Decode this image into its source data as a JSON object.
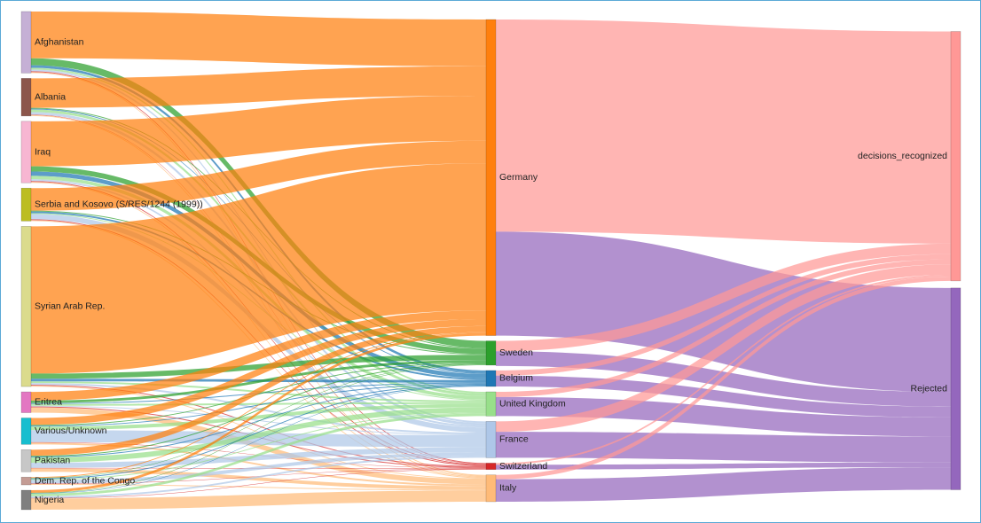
{
  "chart_data": {
    "type": "sankey",
    "title": "",
    "colors": {
      "origin": {
        "Afghanistan": "#c5b0d5",
        "Albania": "#8c564b",
        "Iraq": "#f7b6d2",
        "Serbia and Kosovo (S/RES/1244 (1999))": "#bcbd22",
        "Syrian Arab Rep.": "#dbdb8d",
        "Eritrea": "#e377c2",
        "Various/Unknown": "#17becf",
        "Pakistan": "#c7c7c7",
        "Dem. Rep. of the Congo": "#c49c94",
        "Nigeria": "#7f7f7f"
      },
      "destination": {
        "Germany": "#ff7f0e",
        "Sweden": "#2ca02c",
        "Belgium": "#1f77b4",
        "United Kingdom": "#98df8a",
        "France": "#aec7e8",
        "Switzerland": "#d62728",
        "Italy": "#ffbb78"
      },
      "outcome": {
        "decisions_recognized": "#ff9896",
        "Rejected": "#9467bd"
      }
    },
    "origins": [
      {
        "name": "Afghanistan",
        "flows": {
          "Germany": 54,
          "Sweden": 8,
          "Belgium": 3,
          "United Kingdom": 2,
          "France": 2,
          "Switzerland": 1,
          "Italy": 1
        }
      },
      {
        "name": "Albania",
        "flows": {
          "Germany": 34,
          "Sweden": 1,
          "Belgium": 1,
          "United Kingdom": 3,
          "France": 3,
          "Switzerland": 0.5,
          "Italy": 1
        }
      },
      {
        "name": "Iraq",
        "flows": {
          "Germany": 52,
          "Sweden": 6,
          "Belgium": 5,
          "United Kingdom": 4,
          "France": 2,
          "Switzerland": 1,
          "Italy": 1
        }
      },
      {
        "name": "Serbia and Kosovo (S/RES/1244 (1999))",
        "flows": {
          "Germany": 26,
          "Sweden": 1,
          "Belgium": 2,
          "United Kingdom": 1,
          "France": 6,
          "Switzerland": 1,
          "Italy": 1
        }
      },
      {
        "name": "Syrian Arab Rep.",
        "flows": {
          "Germany": 170,
          "Sweden": 6,
          "Belgium": 3,
          "United Kingdom": 2,
          "France": 2,
          "Switzerland": 1,
          "Italy": 1
        }
      },
      {
        "name": "Eritrea",
        "flows": {
          "Germany": 10,
          "Sweden": 3,
          "Belgium": 1,
          "United Kingdom": 2,
          "France": 1,
          "Switzerland": 1,
          "Italy": 6
        }
      },
      {
        "name": "Various/Unknown",
        "flows": {
          "Germany": 8,
          "Sweden": 1,
          "Belgium": 1,
          "United Kingdom": 4,
          "France": 14,
          "Switzerland": 0.5,
          "Italy": 2
        }
      },
      {
        "name": "Pakistan",
        "flows": {
          "Germany": 7,
          "Sweden": 1,
          "Belgium": 1,
          "United Kingdom": 6,
          "France": 6,
          "Switzerland": 0.5,
          "Italy": 4
        }
      },
      {
        "name": "Dem. Rep. of the Congo",
        "flows": {
          "Germany": 1,
          "Sweden": 0.5,
          "Belgium": 1,
          "United Kingdom": 1,
          "France": 4,
          "Switzerland": 0.5,
          "Italy": 1
        }
      },
      {
        "name": "Nigeria",
        "flows": {
          "Germany": 3,
          "Sweden": 0.5,
          "Belgium": 0.5,
          "United Kingdom": 3,
          "France": 2,
          "Switzerland": 0.5,
          "Italy": 13
        }
      }
    ],
    "destinations": [
      {
        "name": "Germany",
        "flows": {
          "decisions_recognized": 245,
          "Rejected": 120
        }
      },
      {
        "name": "Sweden",
        "flows": {
          "decisions_recognized": 12,
          "Rejected": 17
        }
      },
      {
        "name": "Belgium",
        "flows": {
          "decisions_recognized": 6,
          "Rejected": 12.5
        }
      },
      {
        "name": "United Kingdom",
        "flows": {
          "decisions_recognized": 6,
          "Rejected": 22
        }
      },
      {
        "name": "France",
        "flows": {
          "decisions_recognized": 12,
          "Rejected": 30
        }
      },
      {
        "name": "Switzerland",
        "flows": {
          "decisions_recognized": 2,
          "Rejected": 5.5
        }
      },
      {
        "name": "Italy",
        "flows": {
          "decisions_recognized": 5,
          "Rejected": 26
        }
      }
    ],
    "outcomes": [
      "decisions_recognized",
      "Rejected"
    ]
  }
}
